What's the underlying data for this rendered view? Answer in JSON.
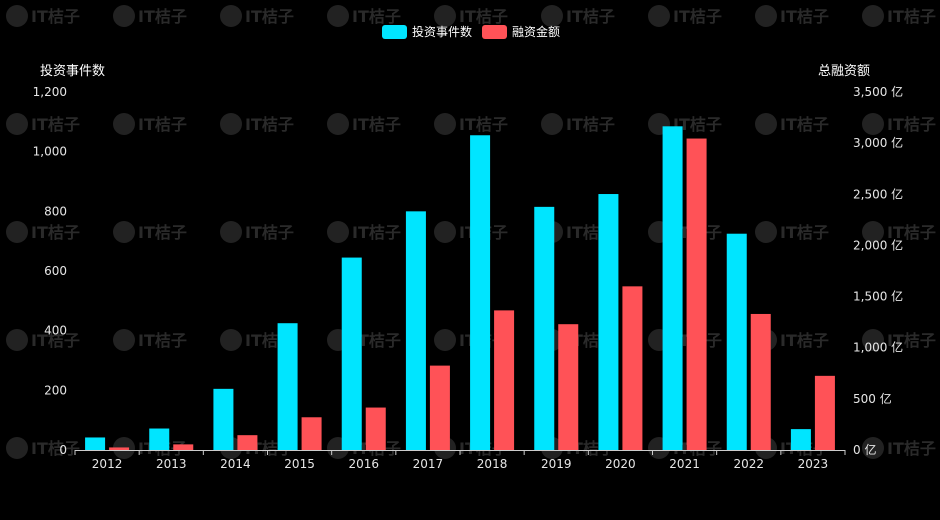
{
  "colors": {
    "background": "#000000",
    "series_events": "#00E5FF",
    "series_amount": "#FF5257",
    "axis": "#cccccc",
    "text": "#e6e6e6"
  },
  "watermark": "IT桔子",
  "chart_data": {
    "type": "bar",
    "categories": [
      "2012",
      "2013",
      "2014",
      "2015",
      "2016",
      "2017",
      "2018",
      "2019",
      "2020",
      "2021",
      "2022",
      "2023"
    ],
    "series": [
      {
        "name": "投资事件数",
        "axis": "left",
        "values": [
          42,
          72,
          205,
          425,
          645,
          800,
          1055,
          815,
          858,
          1085,
          725,
          70
        ]
      },
      {
        "name": "融资金额",
        "axis": "right",
        "values": [
          25,
          55,
          145,
          320,
          415,
          825,
          1365,
          1230,
          1600,
          3045,
          1330,
          725
        ]
      }
    ],
    "ylabel_left": "投资事件数",
    "ylabel_right": "总融资额",
    "ylim_left": [
      0,
      1200
    ],
    "yticks_left": [
      "1,200",
      "1,000",
      "800",
      "600",
      "400",
      "200",
      "0"
    ],
    "yticks_left_values": [
      1200,
      1000,
      800,
      600,
      400,
      200,
      0
    ],
    "ylim_right": [
      0,
      3500
    ],
    "yticks_right": [
      "3,500 亿",
      "3,000 亿",
      "2,500 亿",
      "2,000 亿",
      "1,500 亿",
      "1,000 亿",
      "500 亿",
      "0 亿"
    ],
    "yticks_right_values": [
      3500,
      3000,
      2500,
      2000,
      1500,
      1000,
      500,
      0
    ],
    "legend_position": "top-center",
    "grid": false
  }
}
